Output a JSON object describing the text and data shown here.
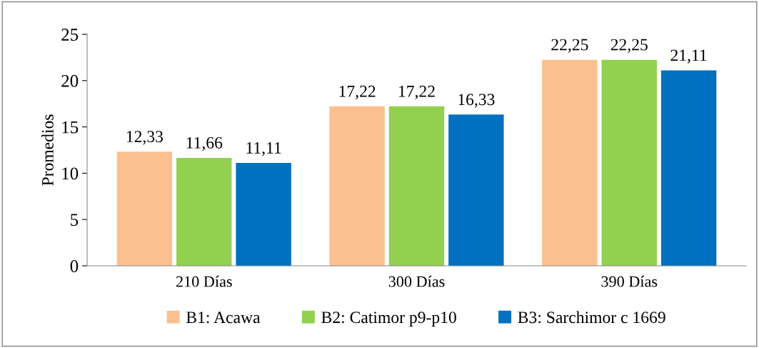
{
  "chart_data": {
    "type": "bar",
    "ylabel": "Promedios",
    "categories": [
      "210 Días",
      "300 Días",
      "390 Días"
    ],
    "series": [
      {
        "name": "B1: Acawa",
        "color": "#fac090",
        "values": [
          12.33,
          17.22,
          22.25
        ],
        "value_labels": [
          "12,33",
          "17,22",
          "22,25"
        ]
      },
      {
        "name": "B2: Catimor p9-p10",
        "color": "#92d050",
        "values": [
          11.66,
          17.22,
          22.25
        ],
        "value_labels": [
          "11,66",
          "17,22",
          "22,25"
        ]
      },
      {
        "name": "B3: Sarchimor c 1669",
        "color": "#0070c0",
        "values": [
          11.11,
          16.33,
          21.11
        ],
        "value_labels": [
          "11,11",
          "16,33",
          "21,11"
        ]
      }
    ],
    "ylim": [
      0,
      25
    ],
    "yticks": [
      0,
      5,
      10,
      15,
      20,
      25
    ],
    "grid": false,
    "legend": "bottom"
  }
}
